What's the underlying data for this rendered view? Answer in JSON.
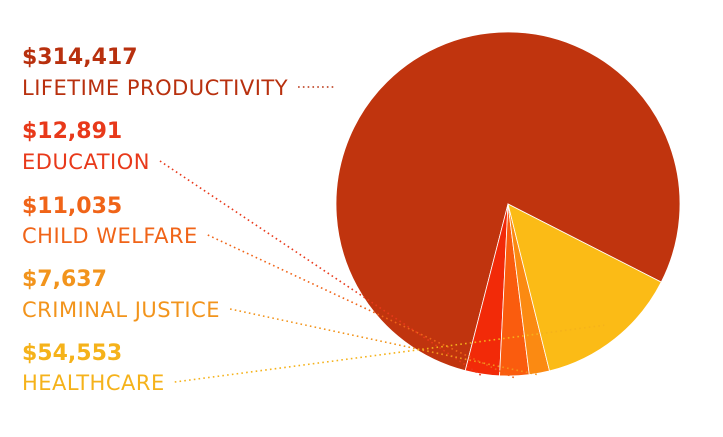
{
  "chart_data": {
    "type": "pie",
    "title": "",
    "slices": [
      {
        "amount": "$314,417",
        "label": "LIFETIME PRODUCTIVITY",
        "value": 314417,
        "color": "#c0340e"
      },
      {
        "amount": "$12,891",
        "label": "EDUCATION",
        "value": 12891,
        "color": "#f22a08"
      },
      {
        "amount": "$11,035",
        "label": "CHILD WELFARE",
        "value": 11035,
        "color": "#fa5c0e"
      },
      {
        "amount": "$7,637",
        "label": "CRIMINAL JUSTICE",
        "value": 7637,
        "color": "#fb8a12"
      },
      {
        "amount": "$54,553",
        "label": "HEALTHCARE",
        "value": 54553,
        "color": "#fbbb16"
      }
    ],
    "label_colors": [
      "#b8300e",
      "#e8391a",
      "#f06418",
      "#f2941c",
      "#f5b21a"
    ],
    "start_angle_deg": -27,
    "direction": "counterclockwise"
  }
}
